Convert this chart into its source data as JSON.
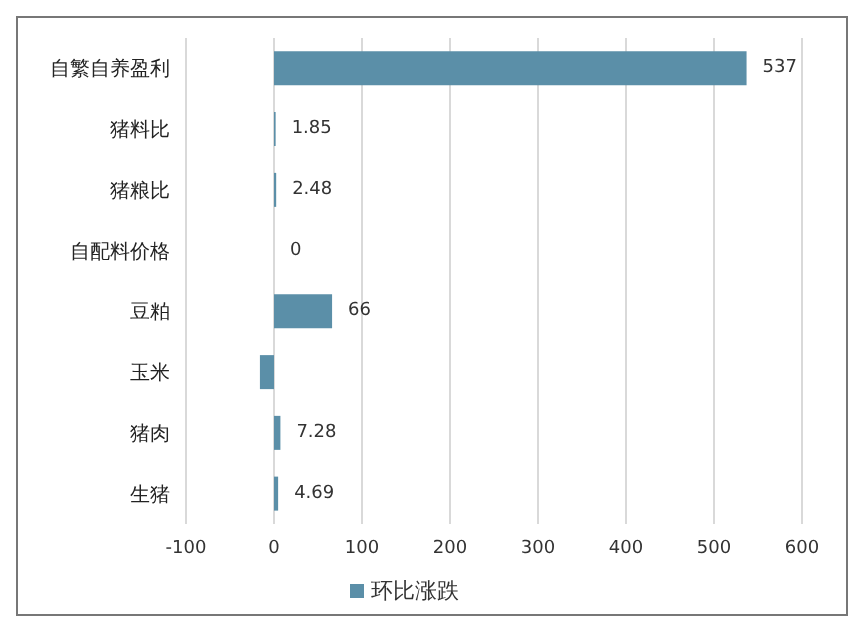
{
  "chart_data": {
    "type": "bar",
    "orientation": "horizontal",
    "categories": [
      "自繁自养盈利",
      "猪料比",
      "猪粮比",
      "自配料价格",
      "豆粕",
      "玉米",
      "猪肉",
      "生猪"
    ],
    "series": [
      {
        "name": "环比涨跌",
        "color": "#5b8fa8",
        "values": [
          537,
          1.85,
          2.48,
          0,
          66,
          -16,
          7.28,
          4.69
        ],
        "value_labels": [
          "537",
          "1.85",
          "2.48",
          "0",
          "66",
          null,
          "7.28",
          "4.69"
        ]
      }
    ],
    "xlim": [
      -100,
      600
    ],
    "xticks": [
      -100,
      0,
      100,
      200,
      300,
      400,
      500,
      600
    ],
    "grid": "x",
    "legend": "bottom"
  }
}
